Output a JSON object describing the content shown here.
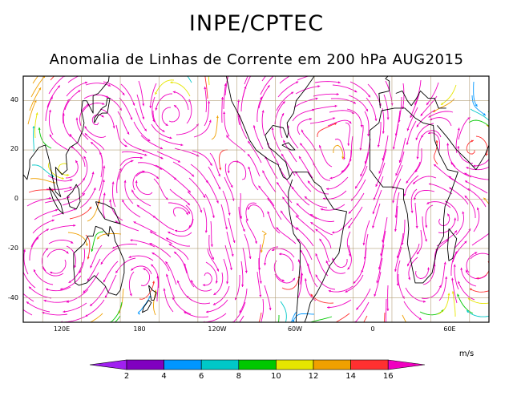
{
  "header": {
    "title": "INPE/CPTEC",
    "subtitle": "Anomalia de Linhas de Corrente em 200 hPa AUG2015"
  },
  "map": {
    "lat_ticks": [
      "40",
      "20",
      "0",
      "-20",
      "-40"
    ],
    "lon_ticks": [
      "120E",
      "180",
      "120W",
      "60W",
      "0",
      "60E"
    ],
    "lat_range": [
      -50,
      50
    ],
    "lon_range": [
      75,
      435
    ],
    "colors": {
      "frame": "#000000",
      "grid": "#b4a07a",
      "coast": "#000000"
    }
  },
  "colorbar": {
    "unit": "m/s",
    "labels": [
      "2",
      "4",
      "6",
      "8",
      "10",
      "12",
      "14",
      "16"
    ],
    "colors": [
      "#a020f0",
      "#8000c0",
      "#0096ff",
      "#00c8c8",
      "#00c800",
      "#e6e600",
      "#f0a000",
      "#ff3030",
      "#f000c0"
    ]
  }
}
